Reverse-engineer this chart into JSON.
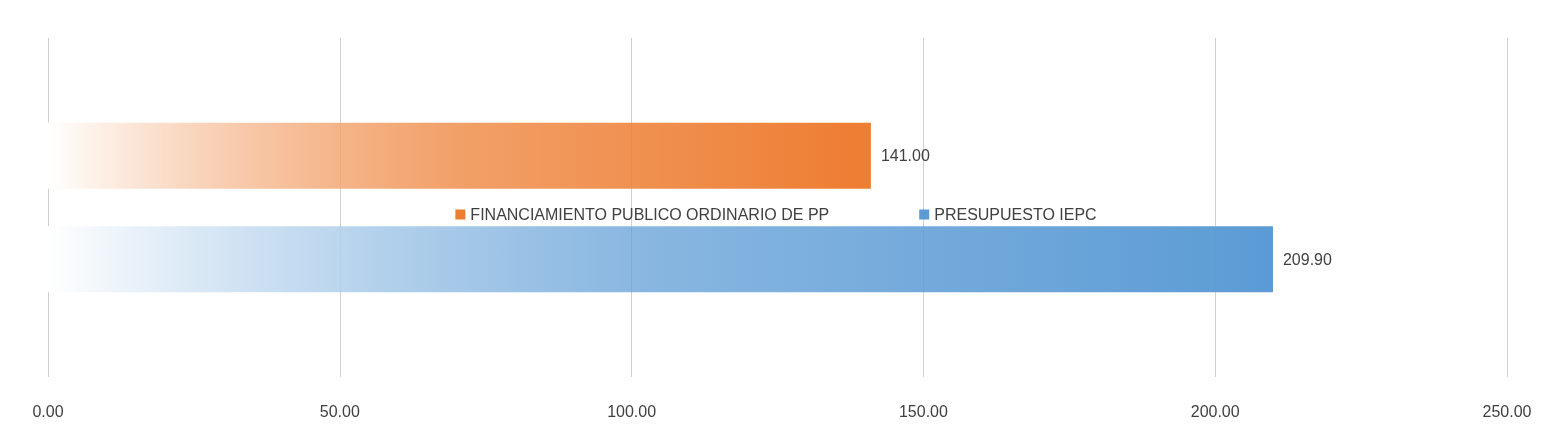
{
  "chart_data": {
    "type": "bar",
    "orientation": "horizontal",
    "categories": [
      null
    ],
    "series": [
      {
        "name": "FINANCIAMIENTO PUBLICO ORDINARIO DE PP",
        "color": "#ed7d31",
        "values": [
          141.0
        ],
        "value_labels": [
          "141.00"
        ]
      },
      {
        "name": "PRESUPUESTO IEPC",
        "color": "#5b9bd5",
        "values": [
          209.9
        ],
        "value_labels": [
          "209.90"
        ]
      }
    ],
    "xlim": [
      0,
      250
    ],
    "xticks": [
      {
        "value": 0,
        "label": "0.00"
      },
      {
        "value": 50,
        "label": "50.00"
      },
      {
        "value": 100,
        "label": "100.00"
      },
      {
        "value": 150,
        "label": "150.00"
      },
      {
        "value": 200,
        "label": "200.00"
      },
      {
        "value": 250,
        "label": "250.00"
      }
    ],
    "grid": "x",
    "legend": "center"
  }
}
